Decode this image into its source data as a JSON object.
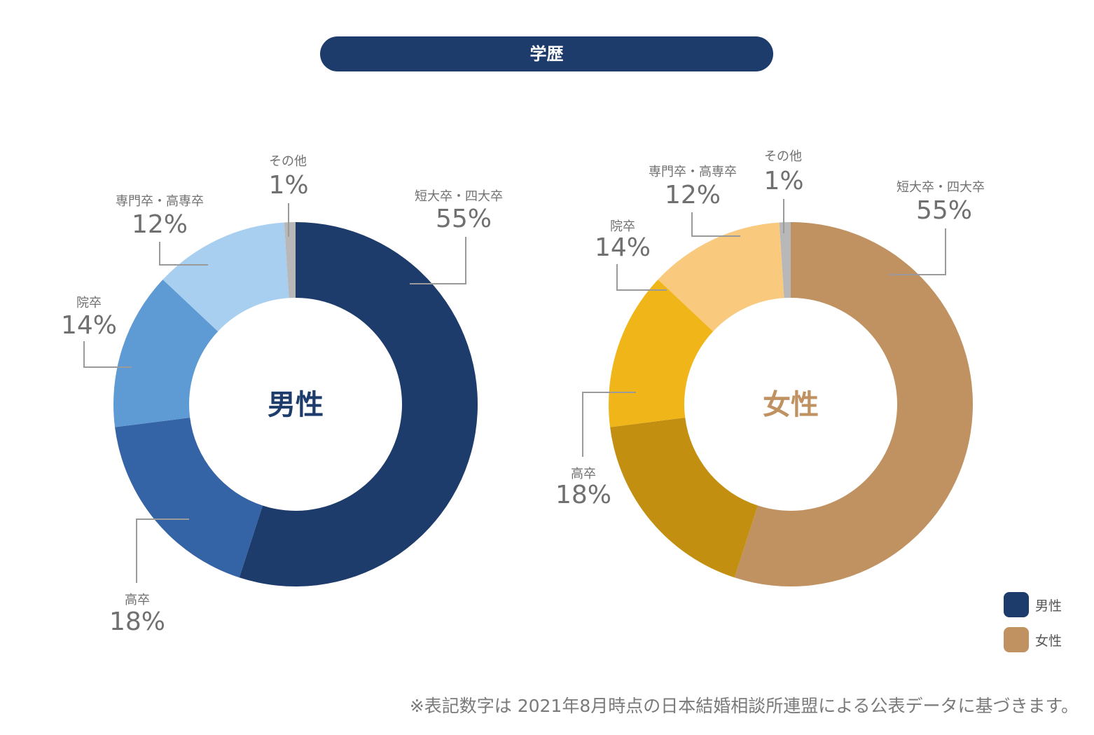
{
  "header": {
    "title": "学歴"
  },
  "colors": {
    "men_primary": "#1e3c6b",
    "women_primary": "#c09262",
    "leader": "#9a9a9a",
    "label": "#707070"
  },
  "chart_data": [
    {
      "type": "pie",
      "variant": "donut",
      "center_label": "男性",
      "center_color": "#1e3c6b",
      "categories": [
        "短大卒・四大卒",
        "高卒",
        "院卒",
        "専門卒・高専卒",
        "その他"
      ],
      "values": [
        55,
        18,
        14,
        12,
        1
      ],
      "value_labels": [
        "55%",
        "18%",
        "14%",
        "12%",
        "1%"
      ],
      "colors": [
        "#1e3c6b",
        "#3463a6",
        "#5e9bd4",
        "#a9cff0",
        "#b8b8b8"
      ]
    },
    {
      "type": "pie",
      "variant": "donut",
      "center_label": "女性",
      "center_color": "#c09262",
      "categories": [
        "短大卒・四大卒",
        "高卒",
        "院卒",
        "専門卒・高専卒",
        "その他"
      ],
      "values": [
        55,
        18,
        14,
        12,
        1
      ],
      "value_labels": [
        "55%",
        "18%",
        "14%",
        "12%",
        "1%"
      ],
      "colors": [
        "#c09262",
        "#c38f10",
        "#f0b518",
        "#f9c97e",
        "#b8b8b8"
      ]
    }
  ],
  "legend": [
    {
      "label": "男性",
      "color": "#1e3c6b"
    },
    {
      "label": "女性",
      "color": "#c09262"
    }
  ],
  "footnote": "※表記数字は 2021年8月時点の日本結婚相談所連盟による公表データに基づきます。"
}
